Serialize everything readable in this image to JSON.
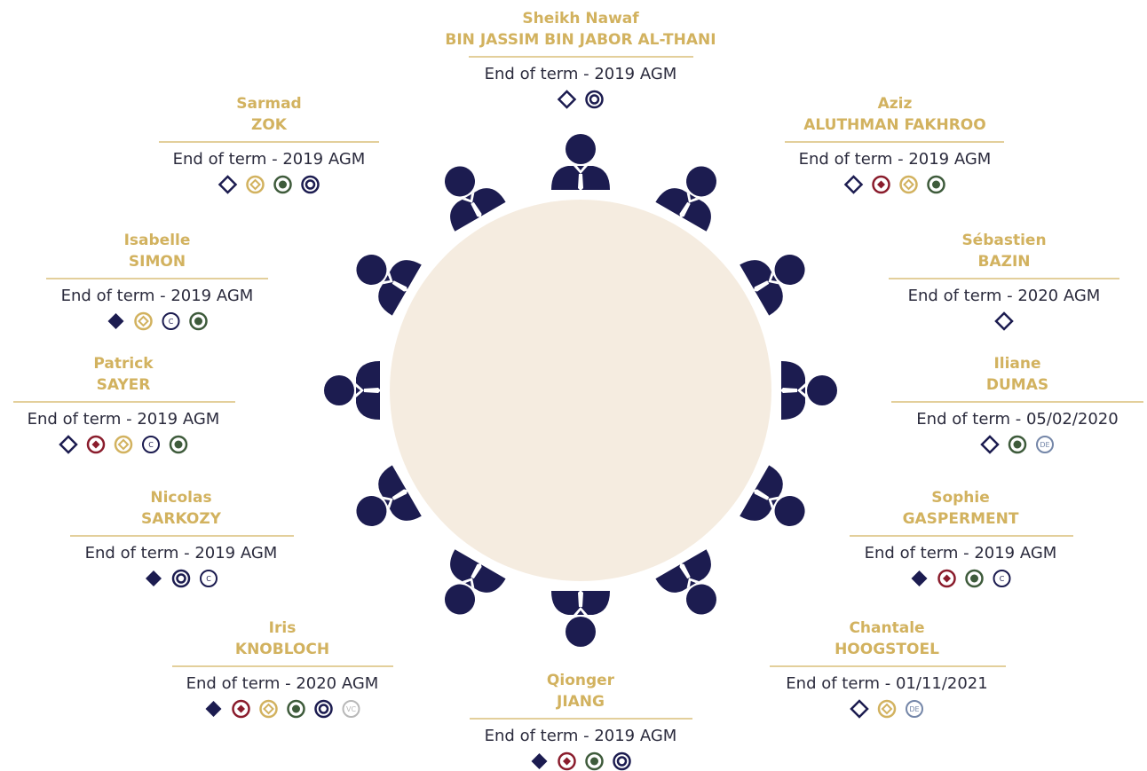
{
  "members": [
    {
      "first_name": "Sheikh Nawaf",
      "last_name": "BIN JASSIM BIN JABOR AL-THANI",
      "term": "End of term - 2019 AGM"
    },
    {
      "first_name": "Aziz",
      "last_name": "ALUTHMAN FAKHROO",
      "term": "End of term - 2019 AGM"
    },
    {
      "first_name": "Sébastien",
      "last_name": "BAZIN",
      "term": "End of term - 2020 AGM"
    },
    {
      "first_name": "Iliane",
      "last_name": "DUMAS",
      "term": "End of term - 05/02/2020",
      "badge_text": [
        "DE"
      ]
    },
    {
      "first_name": "Sophie",
      "last_name": "GASPERMENT",
      "term": "End of term - 2019 AGM",
      "badge_text": [
        "C"
      ]
    },
    {
      "first_name": "Chantale",
      "last_name": "HOOGSTOEL",
      "term": "End of term - 01/11/2021",
      "badge_text": [
        "DE"
      ]
    },
    {
      "first_name": "Qionger",
      "last_name": "JIANG",
      "term": "End of term - 2019 AGM"
    },
    {
      "first_name": "Iris",
      "last_name": "KNOBLOCH",
      "term": "End of term - 2020 AGM",
      "badge_text": [
        "VC"
      ]
    },
    {
      "first_name": "Nicolas",
      "last_name": "SARKOZY",
      "term": "End of term - 2019 AGM",
      "badge_text": [
        "C"
      ]
    },
    {
      "first_name": "Patrick",
      "last_name": "SAYER",
      "term": "End of term - 2019 AGM",
      "badge_text": [
        "C"
      ]
    },
    {
      "first_name": "Isabelle",
      "last_name": "SIMON",
      "term": "End of term - 2019 AGM",
      "badge_text": [
        "C"
      ]
    },
    {
      "first_name": "Sarmad",
      "last_name": "ZOK",
      "term": "End of term - 2019 AGM"
    }
  ]
}
